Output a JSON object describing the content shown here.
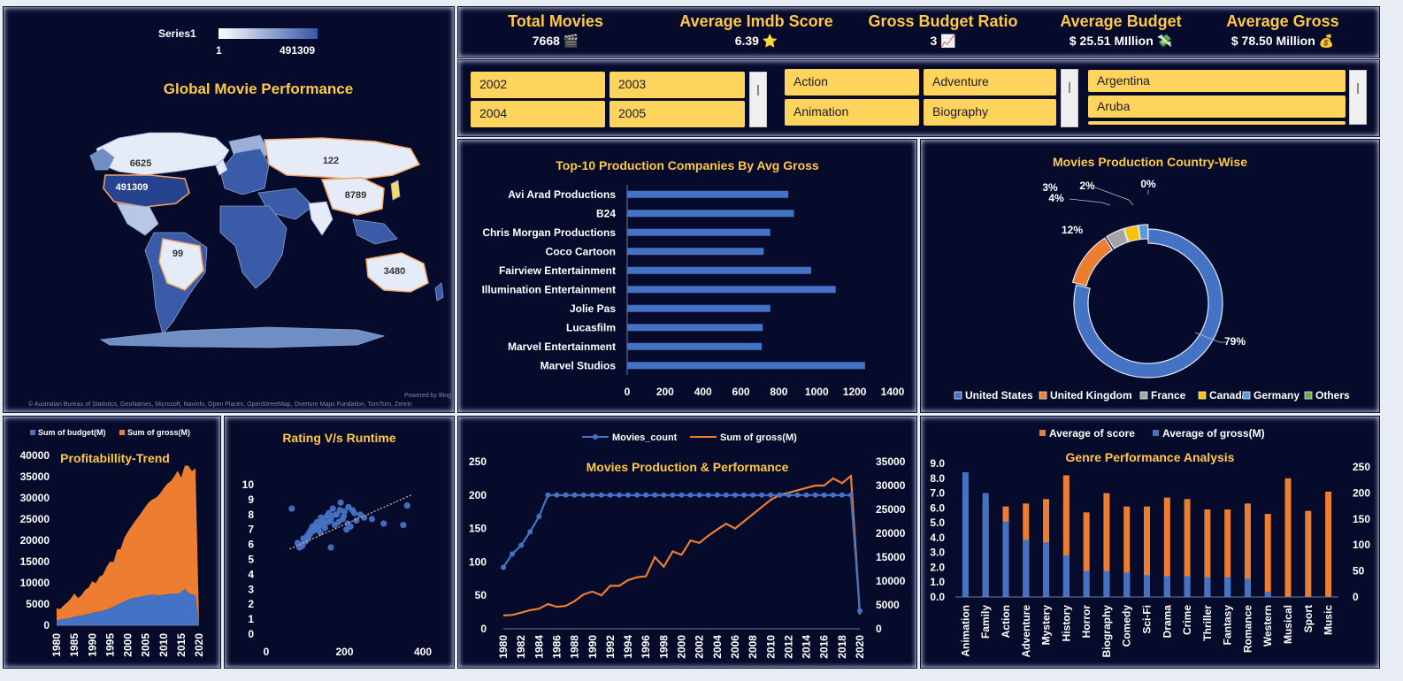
{
  "kpis": [
    {
      "label": "Total Movies",
      "value": "7668",
      "icon": "🎬",
      "icon_name": "clapper-icon"
    },
    {
      "label": "Average Imdb Score",
      "value": "6.39",
      "icon": "⭐",
      "icon_name": "star-icon"
    },
    {
      "label": "Gross Budget Ratio",
      "value": "3",
      "icon": "📈",
      "icon_name": "chart-up-icon"
    },
    {
      "label": "Average Budget",
      "value": "$ 25.51 MIllion",
      "icon": "💸",
      "icon_name": "money-wings-icon"
    },
    {
      "label": "Average Gross",
      "value": "$ 78.50 Million",
      "icon": "💰",
      "icon_name": "money-bag-icon"
    }
  ],
  "slicers": {
    "years": [
      "2002",
      "2003",
      "2004",
      "2005"
    ],
    "genres": [
      "Action",
      "Adventure",
      "Animation",
      "Biography"
    ],
    "countries": [
      "Argentina",
      "Aruba"
    ]
  },
  "colors": {
    "blue": "#4472c4",
    "orange": "#ed7d31",
    "gray": "#a5a5a5",
    "yellow": "#ffc000",
    "lightblue": "#5b9bd5",
    "green": "#70ad47",
    "title": "#ffc845",
    "panel": "#060b2c"
  },
  "map": {
    "title": "Global Movie Performance",
    "legend_series": "Series1",
    "legend_min": "1",
    "legend_max": "491309",
    "labels": [
      "6625",
      "491309",
      "122",
      "8789",
      "99",
      "3480"
    ],
    "attribution": "© Australian Bureau of Statistics, GeoNames, Microsoft, Navinfo, Open Places, OpenStreetMap, Overture Maps Fundation, TomTom, Zenrin",
    "powered": "Powered by Bing"
  },
  "chart_data": [
    {
      "id": "top10",
      "type": "bar",
      "orientation": "horizontal",
      "title": "Top-10 Production Companies By Avg Gross",
      "categories": [
        "Avi Arad Productions",
        "B24",
        "Chris Morgan Productions",
        "Coco Cartoon",
        "Fairview Entertainment",
        "Illumination Entertainment",
        "Jolie Pas",
        "Lucasfilm",
        "Marvel Entertainment",
        "Marvel Studios"
      ],
      "values": [
        850,
        880,
        755,
        720,
        970,
        1100,
        755,
        715,
        710,
        1255
      ],
      "xlim": [
        0,
        1400
      ],
      "xticks": [
        0,
        200,
        400,
        600,
        800,
        1000,
        1200,
        1400
      ],
      "grid": false
    },
    {
      "id": "country",
      "type": "pie",
      "donut": true,
      "title": "Movies Production Country-Wise",
      "labels": [
        "United States",
        "United Kingdom",
        "France",
        "Canada",
        "Germany",
        "Others"
      ],
      "values": [
        79,
        12,
        4,
        3,
        2,
        0
      ],
      "value_labels": [
        "79%",
        "12%",
        "4%",
        "3%",
        "2%",
        "0%"
      ],
      "legend": "bottom"
    },
    {
      "id": "profit",
      "type": "area",
      "stacked": true,
      "title": "Profitabillity-Trend",
      "series": [
        {
          "name": "Sum of budget(M)",
          "x": [
            1980,
            1981,
            1982,
            1983,
            1984,
            1985,
            1986,
            1987,
            1988,
            1989,
            1990,
            1991,
            1992,
            1993,
            1994,
            1995,
            1996,
            1997,
            1998,
            1999,
            2000,
            2001,
            2002,
            2003,
            2004,
            2005,
            2006,
            2007,
            2008,
            2009,
            2010,
            2011,
            2012,
            2013,
            2014,
            2015,
            2016,
            2017,
            2018,
            2019,
            2020
          ],
          "y": [
            1200,
            1300,
            1500,
            1600,
            1800,
            2000,
            2200,
            2300,
            2500,
            2700,
            2900,
            3100,
            3200,
            3400,
            3700,
            4000,
            4400,
            4800,
            5200,
            5600,
            6000,
            6300,
            6500,
            6600,
            6800,
            7000,
            7100,
            7200,
            7100,
            7000,
            7200,
            7300,
            7400,
            7500,
            7400,
            7800,
            8600,
            7600,
            7300,
            7000,
            200
          ]
        },
        {
          "name": "Sum of gross(M)",
          "x": [
            1980,
            1981,
            1982,
            1983,
            1984,
            1985,
            1986,
            1987,
            1988,
            1989,
            1990,
            1991,
            1992,
            1993,
            1994,
            1995,
            1996,
            1997,
            1998,
            1999,
            2000,
            2001,
            2002,
            2003,
            2004,
            2005,
            2006,
            2007,
            2008,
            2009,
            2010,
            2011,
            2012,
            2013,
            2014,
            2015,
            2016,
            2017,
            2018,
            2019,
            2020
          ],
          "y": [
            2800,
            2500,
            3200,
            3800,
            4500,
            5500,
            4200,
            4800,
            5800,
            6200,
            7500,
            6800,
            8200,
            8500,
            10000,
            11000,
            10500,
            13000,
            12800,
            15000,
            16000,
            17000,
            18000,
            19000,
            20000,
            21000,
            22000,
            22500,
            23000,
            24000,
            25000,
            26000,
            26500,
            27500,
            29000,
            27000,
            29000,
            30000,
            29000,
            30000,
            400
          ]
        }
      ],
      "ylim": [
        0,
        40000
      ],
      "yticks": [
        0,
        5000,
        10000,
        15000,
        20000,
        25000,
        30000,
        35000,
        40000
      ],
      "xticks": [
        1980,
        1985,
        1990,
        1995,
        2000,
        2005,
        2010,
        2015,
        2020
      ],
      "legend": "top"
    },
    {
      "id": "rating",
      "type": "scatter",
      "title": "Rating V/s Runtime",
      "points": [
        [
          65,
          8.4
        ],
        [
          80,
          6.1
        ],
        [
          88,
          6.0
        ],
        [
          95,
          6.4
        ],
        [
          100,
          6.2
        ],
        [
          105,
          6.6
        ],
        [
          110,
          6.8
        ],
        [
          115,
          7.0
        ],
        [
          120,
          6.9
        ],
        [
          122,
          7.1
        ],
        [
          125,
          7.3
        ],
        [
          128,
          7.0
        ],
        [
          130,
          7.5
        ],
        [
          135,
          7.2
        ],
        [
          140,
          7.8
        ],
        [
          142,
          7.4
        ],
        [
          145,
          7.6
        ],
        [
          150,
          7.1
        ],
        [
          155,
          7.9
        ],
        [
          160,
          8.1
        ],
        [
          165,
          7.6
        ],
        [
          170,
          8.4
        ],
        [
          175,
          7.3
        ],
        [
          180,
          8.0
        ],
        [
          185,
          7.5
        ],
        [
          190,
          8.8
        ],
        [
          195,
          7.7
        ],
        [
          200,
          8.2
        ],
        [
          205,
          7.0
        ],
        [
          210,
          8.5
        ],
        [
          220,
          8.3
        ],
        [
          230,
          7.6
        ],
        [
          240,
          8.0
        ],
        [
          250,
          7.8
        ],
        [
          270,
          7.7
        ],
        [
          300,
          7.4
        ],
        [
          350,
          7.3
        ],
        [
          360,
          8.6
        ],
        [
          85,
          5.8
        ],
        [
          92,
          5.9
        ],
        [
          98,
          6.2
        ],
        [
          102,
          6.3
        ],
        [
          108,
          6.5
        ],
        [
          112,
          6.7
        ],
        [
          118,
          7.2
        ],
        [
          132,
          7.0
        ],
        [
          138,
          6.8
        ],
        [
          148,
          7.3
        ],
        [
          158,
          7.5
        ],
        [
          168,
          7.9
        ],
        [
          178,
          8.0
        ],
        [
          188,
          8.3
        ],
        [
          198,
          7.9
        ],
        [
          208,
          7.4
        ],
        [
          165,
          5.8
        ],
        [
          215,
          7.2
        ],
        [
          225,
          8.1
        ]
      ],
      "trend": [
        [
          60,
          5.7
        ],
        [
          370,
          9.3
        ]
      ],
      "xlim": [
        0,
        400
      ],
      "ylim": [
        0,
        10
      ],
      "xticks": [
        0,
        200,
        400
      ],
      "yticks": [
        0,
        1,
        2,
        3,
        4,
        5,
        6,
        7,
        8,
        9,
        10
      ]
    },
    {
      "id": "production",
      "type": "line",
      "title": "Movies Production & Performance",
      "x": [
        1980,
        1981,
        1982,
        1983,
        1984,
        1985,
        1986,
        1987,
        1988,
        1989,
        1990,
        1991,
        1992,
        1993,
        1994,
        1995,
        1996,
        1997,
        1998,
        1999,
        2000,
        2001,
        2002,
        2003,
        2004,
        2005,
        2006,
        2007,
        2008,
        2009,
        2010,
        2011,
        2012,
        2013,
        2014,
        2015,
        2016,
        2017,
        2018,
        2019,
        2020
      ],
      "series": [
        {
          "name": "Movies_count",
          "axis": "left",
          "values": [
            92,
            112,
            125,
            145,
            168,
            200,
            200,
            200,
            200,
            200,
            200,
            200,
            200,
            200,
            200,
            200,
            200,
            200,
            200,
            200,
            200,
            200,
            200,
            200,
            200,
            200,
            200,
            200,
            200,
            200,
            200,
            200,
            200,
            200,
            200,
            200,
            200,
            200,
            200,
            200,
            27
          ]
        },
        {
          "name": "Sum of gross(M)",
          "axis": "right",
          "values": [
            2800,
            2900,
            3400,
            3900,
            4200,
            5200,
            4600,
            4800,
            5800,
            7200,
            7800,
            7000,
            9000,
            9000,
            10200,
            10800,
            11000,
            15000,
            13000,
            16200,
            15500,
            18500,
            18000,
            19500,
            20800,
            22000,
            21000,
            22500,
            24000,
            25500,
            27000,
            28000,
            28500,
            29000,
            29500,
            30000,
            30000,
            31500,
            30500,
            32000,
            3000
          ]
        }
      ],
      "ylim_left": [
        0,
        250
      ],
      "ylim_right": [
        0,
        35000
      ],
      "yticks_left": [
        0,
        50,
        100,
        150,
        200,
        250
      ],
      "yticks_right": [
        0,
        5000,
        10000,
        15000,
        20000,
        25000,
        30000,
        35000
      ],
      "xticks": [
        1980,
        1982,
        1984,
        1986,
        1988,
        1990,
        1992,
        1994,
        1996,
        1998,
        2000,
        2002,
        2004,
        2006,
        2008,
        2010,
        2012,
        2014,
        2016,
        2018,
        2020
      ],
      "legend": "top"
    },
    {
      "id": "genre",
      "type": "bar",
      "title": "Genre Performance Analysis",
      "categories": [
        "Animation",
        "Family",
        "Action",
        "Adventure",
        "Mystery",
        "History",
        "Horror",
        "Biography",
        "Comedy",
        "Sci-Fi",
        "Drama",
        "Crime",
        "Thriller",
        "Fantasy",
        "Romance",
        "Western",
        "Musical",
        "Sport",
        "Music"
      ],
      "series": [
        {
          "name": "Average of score",
          "axis": "left",
          "values": [
            6.7,
            6.4,
            6.1,
            6.3,
            6.6,
            8.2,
            5.7,
            7.0,
            6.1,
            6.1,
            6.7,
            6.6,
            5.9,
            5.9,
            6.3,
            5.6,
            8.0,
            5.8,
            7.1
          ]
        },
        {
          "name": "Average of gross(M)",
          "axis": "right",
          "values": [
            240,
            200,
            145,
            110,
            105,
            80,
            50,
            50,
            47,
            42,
            40,
            40,
            38,
            38,
            35,
            10,
            0,
            0,
            0
          ]
        }
      ],
      "ylim_left": [
        0,
        9
      ],
      "ylim_right": [
        0,
        257
      ],
      "yticks_left": [
        "0.0",
        "1.0",
        "2.0",
        "3.0",
        "4.0",
        "5.0",
        "6.0",
        "7.0",
        "8.0",
        "9.0"
      ],
      "yticks_right": [
        0,
        50,
        100,
        150,
        200,
        250
      ],
      "legend": "top"
    }
  ]
}
